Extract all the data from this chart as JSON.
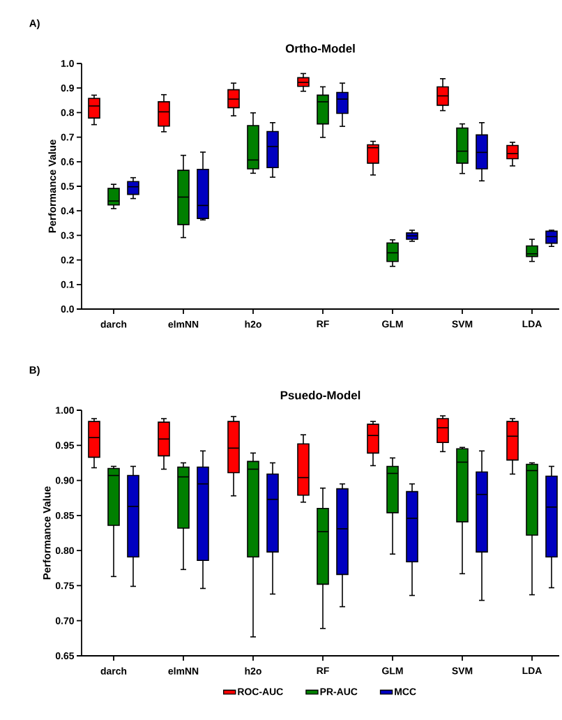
{
  "chart_data": [
    {
      "type": "box",
      "title": "Ortho-Model",
      "ylabel": "Performance Value",
      "annotations": [
        "A)"
      ],
      "categories": [
        "darch",
        "elmNN",
        "h2o",
        "RF",
        "GLM",
        "SVM",
        "LDA"
      ],
      "ylim": [
        0,
        1
      ],
      "yticks": [
        {
          "value": 0,
          "label": "0.0"
        },
        0.1,
        0.2,
        0.3,
        0.4,
        0.5,
        0.6,
        0.7,
        0.8,
        0.9,
        {
          "value": 1,
          "label": "1.0"
        }
      ],
      "grid": false,
      "legend": false,
      "series": [
        {
          "color": "#ff0000",
          "boxes": [
            {
              "low": 0.751,
              "q1": 0.778,
              "median": 0.827,
              "q3": 0.858,
              "high": 0.871
            },
            {
              "low": 0.722,
              "q1": 0.745,
              "median": 0.803,
              "q3": 0.844,
              "high": 0.873
            },
            {
              "low": 0.787,
              "q1": 0.82,
              "median": 0.855,
              "q3": 0.893,
              "high": 0.92
            },
            {
              "low": 0.887,
              "q1": 0.907,
              "median": 0.923,
              "q3": 0.942,
              "high": 0.959
            },
            {
              "low": 0.546,
              "q1": 0.594,
              "median": 0.657,
              "q3": 0.669,
              "high": 0.683
            },
            {
              "low": 0.808,
              "q1": 0.83,
              "median": 0.868,
              "q3": 0.905,
              "high": 0.938
            },
            {
              "low": 0.583,
              "q1": 0.612,
              "median": 0.633,
              "q3": 0.666,
              "high": 0.679
            }
          ]
        },
        {
          "color": "#007f00",
          "boxes": [
            {
              "low": 0.409,
              "q1": 0.424,
              "median": 0.44,
              "q3": 0.491,
              "high": 0.508
            },
            {
              "low": 0.291,
              "q1": 0.344,
              "median": 0.456,
              "q3": 0.565,
              "high": 0.626
            },
            {
              "low": 0.553,
              "q1": 0.571,
              "median": 0.607,
              "q3": 0.747,
              "high": 0.799
            },
            {
              "low": 0.699,
              "q1": 0.754,
              "median": 0.844,
              "q3": 0.871,
              "high": 0.905
            },
            {
              "low": 0.174,
              "q1": 0.194,
              "median": 0.229,
              "q3": 0.269,
              "high": 0.282
            },
            {
              "low": 0.552,
              "q1": 0.594,
              "median": 0.643,
              "q3": 0.737,
              "high": 0.754
            },
            {
              "low": 0.194,
              "q1": 0.214,
              "median": 0.225,
              "q3": 0.257,
              "high": 0.284
            }
          ]
        },
        {
          "color": "#0000c0",
          "boxes": [
            {
              "low": 0.45,
              "q1": 0.467,
              "median": 0.498,
              "q3": 0.519,
              "high": 0.535
            },
            {
              "low": 0.363,
              "q1": 0.369,
              "median": 0.422,
              "q3": 0.569,
              "high": 0.639
            },
            {
              "low": 0.537,
              "q1": 0.576,
              "median": 0.662,
              "q3": 0.723,
              "high": 0.759
            },
            {
              "low": 0.744,
              "q1": 0.797,
              "median": 0.855,
              "q3": 0.882,
              "high": 0.92
            },
            {
              "low": 0.276,
              "q1": 0.284,
              "median": 0.298,
              "q3": 0.31,
              "high": 0.321
            },
            {
              "low": 0.522,
              "q1": 0.571,
              "median": 0.638,
              "q3": 0.709,
              "high": 0.759
            },
            {
              "low": 0.255,
              "q1": 0.268,
              "median": 0.295,
              "q3": 0.317,
              "high": 0.321
            }
          ]
        }
      ]
    },
    {
      "type": "box",
      "title": "Psuedo-Model",
      "ylabel": "Performance Value",
      "annotations": [
        "B)"
      ],
      "categories": [
        "darch",
        "elmNN",
        "h2o",
        "RF",
        "GLM",
        "SVM",
        "LDA"
      ],
      "ylim": [
        0.65,
        1
      ],
      "yticks": [
        {
          "value": 0.65,
          "label": "0.65"
        },
        {
          "value": 0.7,
          "label": "0.70"
        },
        {
          "value": 0.75,
          "label": "0.75"
        },
        {
          "value": 0.8,
          "label": "0.80"
        },
        {
          "value": 0.85,
          "label": "0.85"
        },
        {
          "value": 0.9,
          "label": "0.90"
        },
        {
          "value": 0.95,
          "label": "0.95"
        },
        {
          "value": 1,
          "label": "1.00"
        }
      ],
      "grid": false,
      "legend": "bottom",
      "series": [
        {
          "name": "ROC-AUC",
          "color": "#ff0000",
          "boxes": [
            {
              "low": 0.918,
              "q1": 0.933,
              "median": 0.961,
              "q3": 0.984,
              "high": 0.988
            },
            {
              "low": 0.916,
              "q1": 0.935,
              "median": 0.959,
              "q3": 0.983,
              "high": 0.988
            },
            {
              "low": 0.878,
              "q1": 0.911,
              "median": 0.946,
              "q3": 0.984,
              "high": 0.991
            },
            {
              "low": 0.869,
              "q1": 0.879,
              "median": 0.904,
              "q3": 0.952,
              "high": 0.965
            },
            {
              "low": 0.921,
              "q1": 0.939,
              "median": 0.964,
              "q3": 0.98,
              "high": 0.984
            },
            {
              "low": 0.941,
              "q1": 0.954,
              "median": 0.975,
              "q3": 0.988,
              "high": 0.992
            },
            {
              "low": 0.909,
              "q1": 0.929,
              "median": 0.963,
              "q3": 0.984,
              "high": 0.988
            }
          ]
        },
        {
          "name": "PR-AUC",
          "color": "#007f00",
          "boxes": [
            {
              "low": 0.763,
              "q1": 0.836,
              "median": 0.907,
              "q3": 0.917,
              "high": 0.92
            },
            {
              "low": 0.773,
              "q1": 0.832,
              "median": 0.905,
              "q3": 0.919,
              "high": 0.925
            },
            {
              "low": 0.677,
              "q1": 0.791,
              "median": 0.916,
              "q3": 0.927,
              "high": 0.939
            },
            {
              "low": 0.689,
              "q1": 0.752,
              "median": 0.827,
              "q3": 0.86,
              "high": 0.889
            },
            {
              "low": 0.795,
              "q1": 0.854,
              "median": 0.91,
              "q3": 0.92,
              "high": 0.932
            },
            {
              "low": 0.767,
              "q1": 0.841,
              "median": 0.926,
              "q3": 0.945,
              "high": 0.947
            },
            {
              "low": 0.737,
              "q1": 0.822,
              "median": 0.914,
              "q3": 0.923,
              "high": 0.925
            }
          ]
        },
        {
          "name": "MCC",
          "color": "#0000c0",
          "boxes": [
            {
              "low": 0.749,
              "q1": 0.791,
              "median": 0.863,
              "q3": 0.907,
              "high": 0.92
            },
            {
              "low": 0.746,
              "q1": 0.786,
              "median": 0.895,
              "q3": 0.919,
              "high": 0.942
            },
            {
              "low": 0.738,
              "q1": 0.798,
              "median": 0.873,
              "q3": 0.909,
              "high": 0.925
            },
            {
              "low": 0.72,
              "q1": 0.766,
              "median": 0.831,
              "q3": 0.888,
              "high": 0.895
            },
            {
              "low": 0.736,
              "q1": 0.784,
              "median": 0.846,
              "q3": 0.884,
              "high": 0.895
            },
            {
              "low": 0.729,
              "q1": 0.798,
              "median": 0.88,
              "q3": 0.912,
              "high": 0.942
            },
            {
              "low": 0.747,
              "q1": 0.791,
              "median": 0.862,
              "q3": 0.906,
              "high": 0.92
            }
          ]
        }
      ]
    }
  ]
}
